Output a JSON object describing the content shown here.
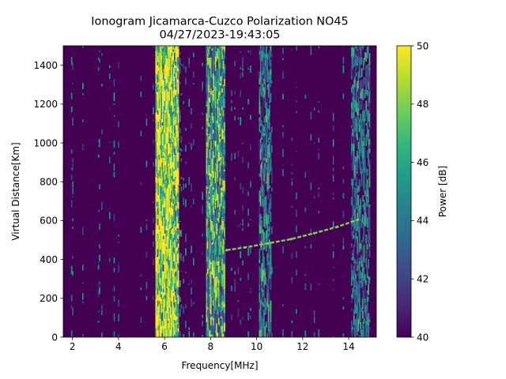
{
  "chart_data": {
    "type": "heatmap",
    "title": "Ionogram Jicamarca-Cuzco Polarization NO45",
    "subtitle": "04/27/2023-19:43:05",
    "xlabel": "Frequency[MHz]",
    "ylabel": "Virtual Distance[Km]",
    "xlim": [
      1.6,
      15.2
    ],
    "ylim": [
      0,
      1500
    ],
    "x_ticks": [
      2,
      4,
      6,
      8,
      10,
      12,
      14
    ],
    "y_ticks": [
      0,
      200,
      400,
      600,
      800,
      1000,
      1200,
      1400
    ],
    "colorbar": {
      "label": "Power [dB]",
      "range": [
        40,
        50
      ],
      "ticks": [
        40,
        42,
        44,
        46,
        48,
        50
      ],
      "colormap": "viridis"
    },
    "grid": false,
    "bands": [
      {
        "x_range": [
          5.6,
          6.6
        ],
        "y_range": [
          0,
          1500
        ],
        "mean_dB": 49.2
      },
      {
        "x_range": [
          7.8,
          8.6
        ],
        "y_range": [
          0,
          1500
        ],
        "mean_dB": 45.5
      },
      {
        "x_range": [
          10.1,
          10.6
        ],
        "y_range": [
          0,
          1500
        ],
        "mean_dB": 43.0
      },
      {
        "x_range": [
          14.1,
          14.9
        ],
        "y_range": [
          0,
          1500
        ],
        "mean_dB": 42.5
      }
    ],
    "trace": {
      "x": [
        8.7,
        9.5,
        10.5,
        11.5,
        12.5,
        13.5,
        14.4
      ],
      "y": [
        448,
        462,
        483,
        505,
        535,
        568,
        605
      ],
      "dB": 48
    }
  }
}
